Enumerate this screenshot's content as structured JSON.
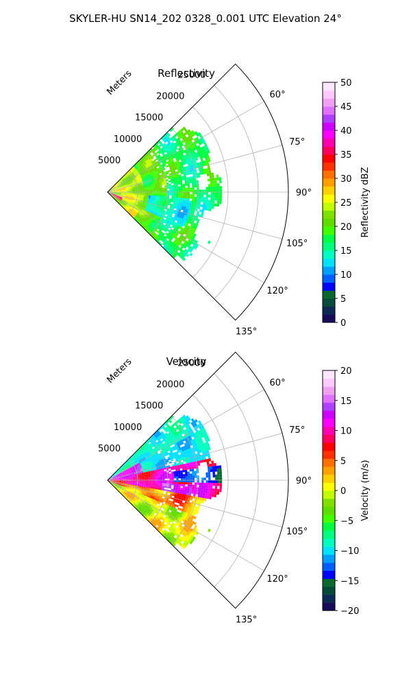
{
  "suptitle": "SKYLER-HU  SN14_202  0328_0.001 UTC Elevation 24°",
  "chart_data": [
    {
      "type": "polar-sector",
      "title": "Reflectivity",
      "radial_label": "Meters",
      "radial_ticks": [
        "5000",
        "10000",
        "15000",
        "20000",
        "25000"
      ],
      "radial_values": [
        5000,
        10000,
        15000,
        20000,
        25000
      ],
      "rlim": [
        0,
        30000
      ],
      "azimuth_range_deg": [
        45,
        135
      ],
      "azimuth_ticks": [
        "60°",
        "75°",
        "90°",
        "105°",
        "120°",
        "135°"
      ],
      "azimuth_values": [
        60,
        75,
        90,
        105,
        120,
        135
      ],
      "grid": true,
      "data_extent": {
        "range_max_m": 20000,
        "azimuth_deg": [
          45,
          135
        ]
      },
      "dominant_fill": "green (15–25 dBZ)",
      "colorbar": {
        "label": "Reflectivity dBZ",
        "vmin": 0,
        "vmax": 50,
        "ticks": [
          "0",
          "5",
          "10",
          "15",
          "20",
          "25",
          "30",
          "35",
          "40",
          "45",
          "50"
        ],
        "tick_values": [
          0,
          5,
          10,
          15,
          20,
          25,
          30,
          35,
          40,
          45,
          50
        ],
        "colors": [
          "#1a0a5c",
          "#0d2a55",
          "#0a4a3a",
          "#0a6a30",
          "#0000ff",
          "#0060ff",
          "#00a0ff",
          "#00e0ff",
          "#00ffc0",
          "#00ff80",
          "#00ff40",
          "#40ff00",
          "#60dd00",
          "#80e000",
          "#c0ff00",
          "#ffff00",
          "#ffd000",
          "#ffa000",
          "#ff7000",
          "#ff3000",
          "#ff0000",
          "#ff0060",
          "#ff00b0",
          "#ff00ff",
          "#d000ff",
          "#b040ff",
          "#e070ff",
          "#f0a0f0",
          "#ffc8ff",
          "#ffe8ff"
        ]
      }
    },
    {
      "type": "polar-sector",
      "title": "Velocity",
      "radial_label": "Meters",
      "radial_ticks": [
        "5000",
        "10000",
        "15000",
        "20000",
        "25000"
      ],
      "radial_values": [
        5000,
        10000,
        15000,
        20000,
        25000
      ],
      "rlim": [
        0,
        30000
      ],
      "azimuth_range_deg": [
        45,
        135
      ],
      "azimuth_ticks": [
        "60°",
        "75°",
        "90°",
        "105°",
        "120°",
        "135°"
      ],
      "azimuth_values": [
        60,
        75,
        90,
        105,
        120,
        135
      ],
      "grid": true,
      "data_extent": {
        "range_max_m": 20000,
        "azimuth_deg": [
          45,
          135
        ]
      },
      "colorbar": {
        "label": "Velocity (m/s)",
        "vmin": -20,
        "vmax": 20,
        "ticks": [
          "−20",
          "−15",
          "−10",
          "−5",
          "0",
          "5",
          "10",
          "15",
          "20"
        ],
        "tick_values": [
          -20,
          -15,
          -10,
          -5,
          0,
          5,
          10,
          15,
          20
        ],
        "colors": [
          "#1a0a5c",
          "#0d2a55",
          "#0a4a3a",
          "#0a6a30",
          "#0000ff",
          "#0060ff",
          "#00a0ff",
          "#00e0ff",
          "#00ffc0",
          "#00ff80",
          "#00ff40",
          "#40ff00",
          "#60dd00",
          "#80e000",
          "#c0ff00",
          "#ffff00",
          "#ffd000",
          "#ffa000",
          "#ff7000",
          "#ff3000",
          "#ff0000",
          "#ff0060",
          "#ff00b0",
          "#ff00ff",
          "#d000ff",
          "#b040ff",
          "#e070ff",
          "#f0a0f0",
          "#ffc8ff",
          "#ffe8ff"
        ]
      }
    }
  ]
}
